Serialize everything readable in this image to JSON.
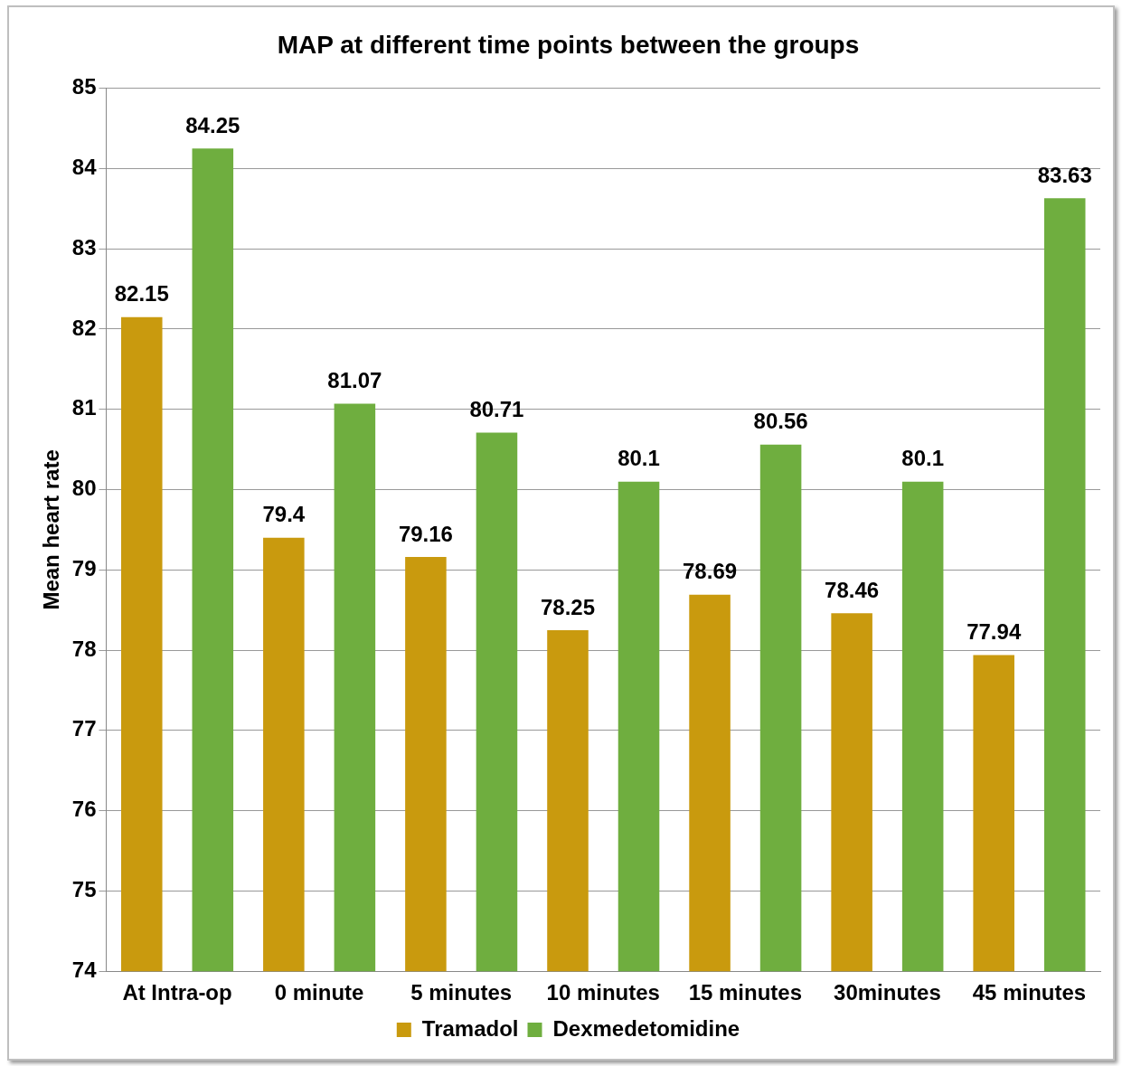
{
  "chart_data": {
    "type": "bar",
    "title": "MAP at different time points between the groups",
    "ylabel": "Mean heart rate",
    "categories": [
      "At Intra-op",
      "0 minute",
      "5 minutes",
      "10 minutes",
      "15 minutes",
      "30minutes",
      "45 minutes"
    ],
    "series": [
      {
        "name": "Tramadol",
        "color": "#c99a0e",
        "values": [
          82.15,
          79.4,
          79.16,
          78.25,
          78.69,
          78.46,
          77.94
        ]
      },
      {
        "name": "Dexmedetomidine",
        "color": "#6fae3f",
        "values": [
          84.25,
          81.07,
          80.71,
          80.1,
          80.56,
          80.1,
          83.63
        ]
      }
    ],
    "ylim": [
      74,
      85
    ],
    "yticks": [
      74,
      75,
      76,
      77,
      78,
      79,
      80,
      81,
      82,
      83,
      84,
      85
    ],
    "grid": "y",
    "legend": "bottom",
    "data_labels": true
  }
}
